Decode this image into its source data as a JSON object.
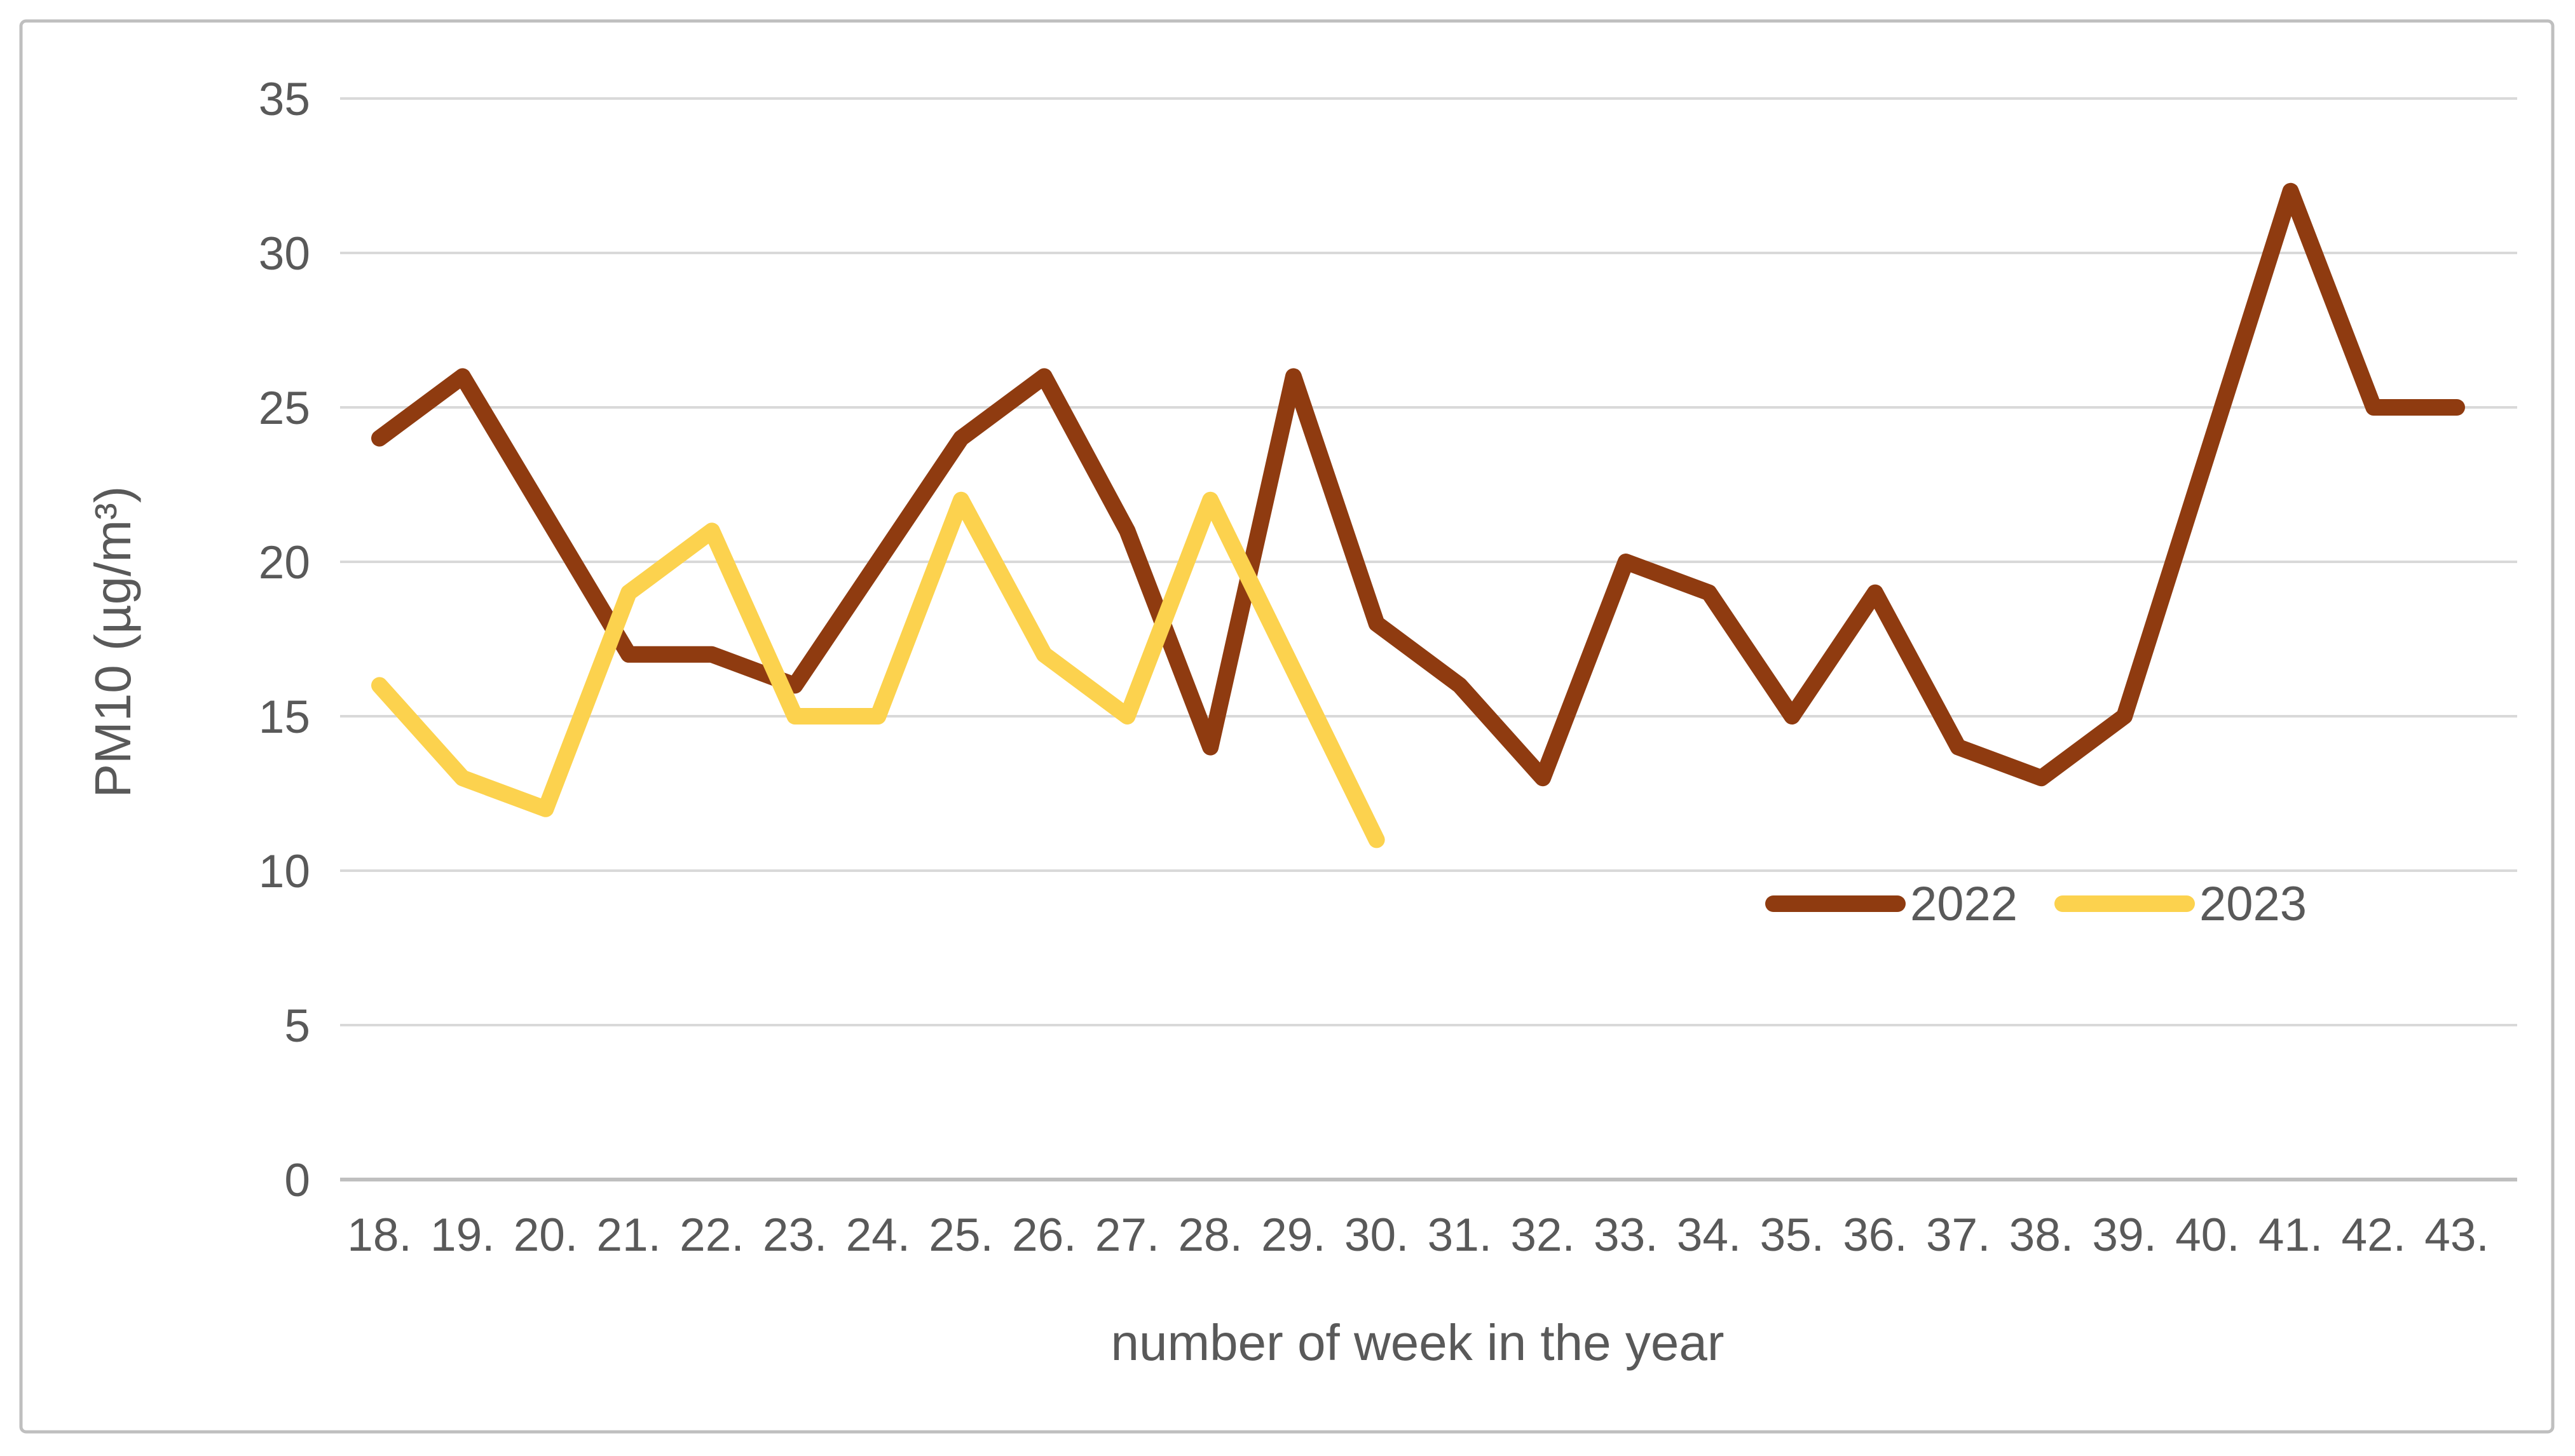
{
  "figure": {
    "background": "#FFFFFF",
    "border_color": "#BFBFBF"
  },
  "chart_data": {
    "type": "line",
    "title": "",
    "xlabel": "number of week in the year",
    "ylabel": "PM10 (µg/m³)",
    "categories": [
      "18.",
      "19.",
      "20.",
      "21.",
      "22.",
      "23.",
      "24.",
      "25.",
      "26.",
      "27.",
      "28.",
      "29.",
      "30.",
      "31.",
      "32.",
      "33.",
      "34.",
      "35.",
      "36.",
      "37.",
      "38.",
      "39.",
      "40.",
      "41.",
      "42.",
      "43."
    ],
    "ylim": [
      0,
      35
    ],
    "yticks": [
      0,
      5,
      10,
      15,
      20,
      25,
      30,
      35
    ],
    "grid": true,
    "gridline_color": "#D9D9D9",
    "axisline_color": "#BFBFBF",
    "text_color": "#595959",
    "legend_position": "middle-right",
    "series": [
      {
        "name": "2022",
        "color": "#8F3B10",
        "values": [
          24,
          26,
          21.5,
          17,
          17,
          16,
          20,
          24,
          26,
          21,
          14,
          26,
          18,
          16,
          13,
          20,
          19,
          15,
          19,
          14,
          13,
          15,
          23.5,
          32,
          25,
          25
        ]
      },
      {
        "name": "2023",
        "color": "#FCD24E",
        "values": [
          16,
          13,
          12,
          19,
          21,
          15,
          15,
          22,
          17,
          15,
          22,
          16.5,
          11
        ]
      }
    ]
  }
}
